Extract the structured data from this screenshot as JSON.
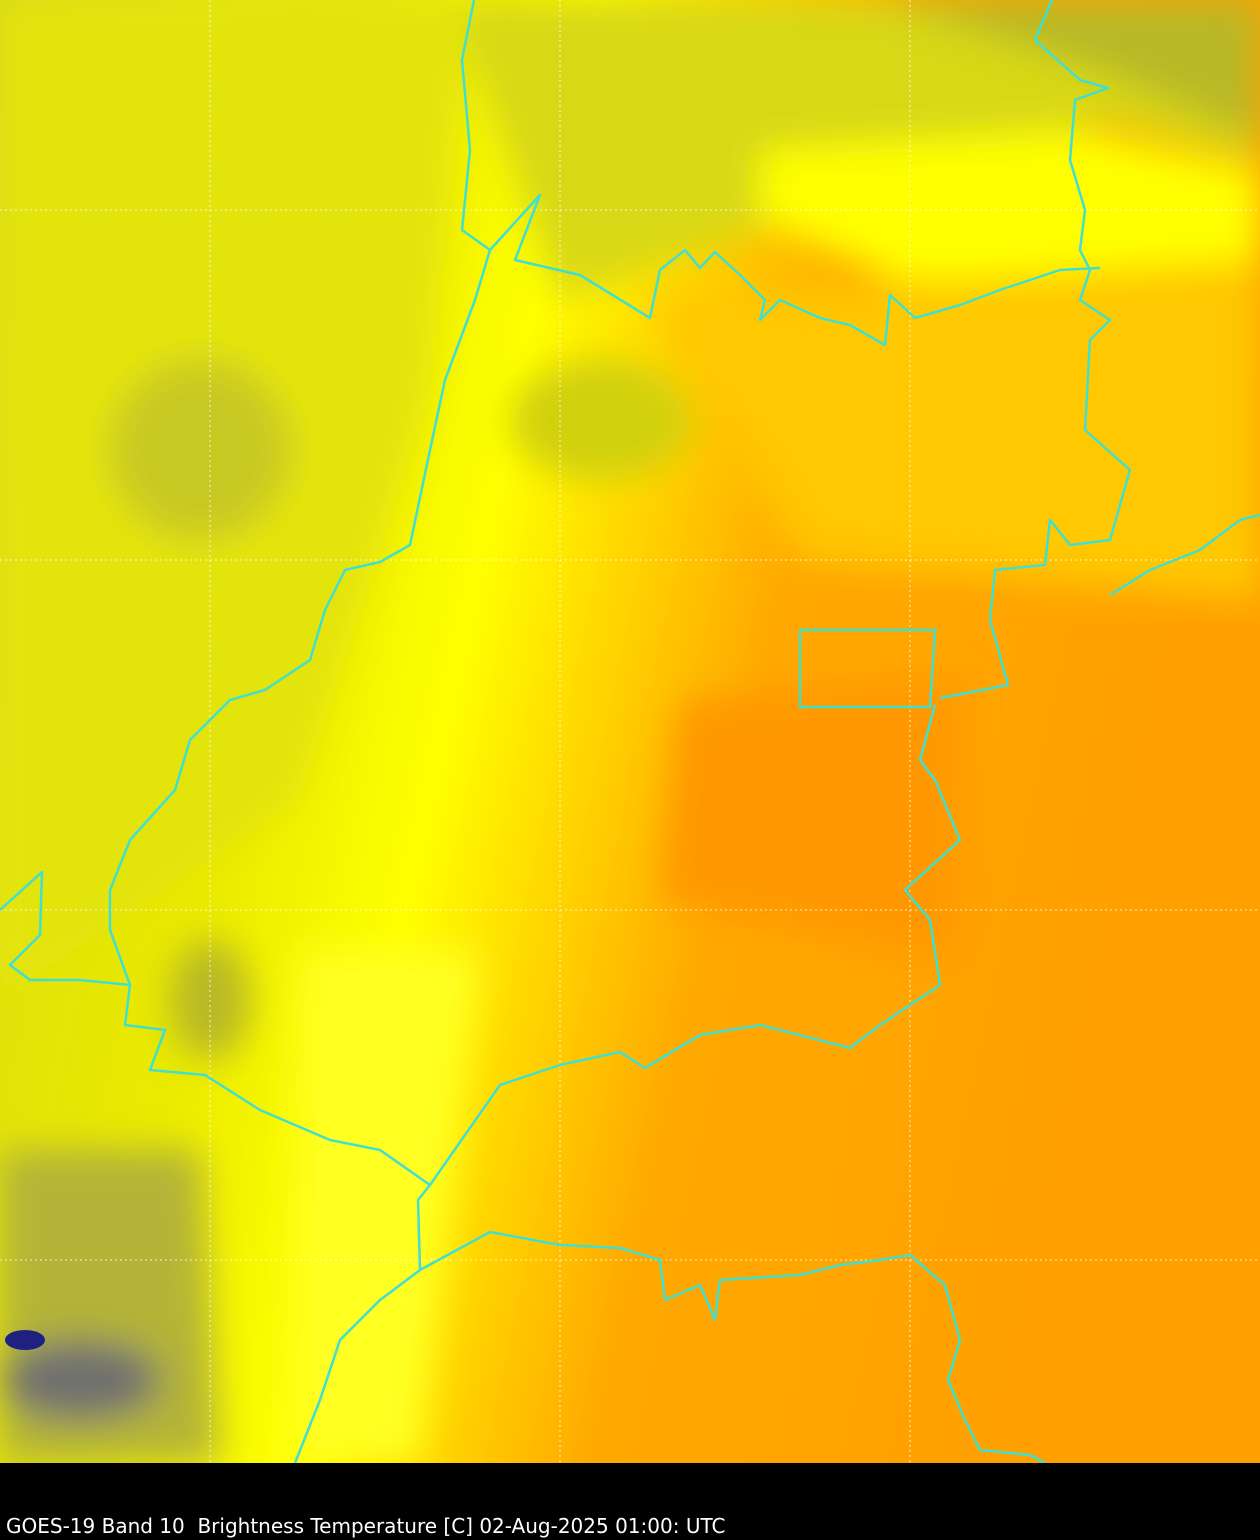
{
  "caption": "GOES-19 Band 10  Brightness Temperature [C] 02-Aug-2025 01:00: UTC",
  "colors": {
    "cold": "#b8b830",
    "olive_yellow": "#e2e20c",
    "bright_yellow": "#ffff00",
    "warm": "#ffc800",
    "orange": "#ffa000",
    "borders": "#40e0d0",
    "gridlines": "#ffffff",
    "deep_cold": "#202080"
  },
  "map": {
    "gridlines": "dotted",
    "boundaries": "state/national borders"
  }
}
